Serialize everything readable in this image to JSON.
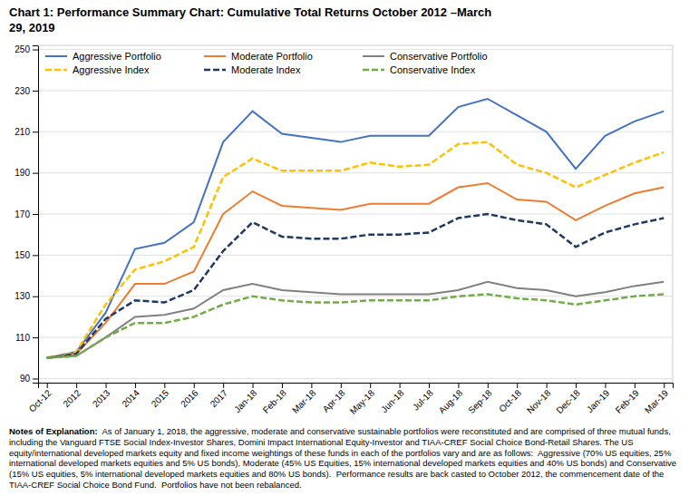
{
  "chart_data": {
    "type": "line",
    "title": "Chart 1:  Performance Summary Chart:  Cumulative Total Returns October 2012 –March",
    "subtitle": "29, 2019",
    "categories": [
      "Oct-12",
      "2012",
      "2013",
      "2014",
      "2015",
      "2016",
      "2017",
      "Jan-18",
      "Feb-18",
      "Mar-18",
      "Apr-18",
      "May-18",
      "Jun-18",
      "Jul-18",
      "Aug-18",
      "Sep-18",
      "Oct-18",
      "Nov-18",
      "Dec-18",
      "Jan-19",
      "Feb-19",
      "Mar-19"
    ],
    "series": [
      {
        "name": "Aggressive Portfolio",
        "color": "#4472C4",
        "line_style": "solid",
        "values": [
          100,
          103,
          122,
          153,
          156,
          166,
          205,
          220,
          209,
          207,
          205,
          208,
          208,
          208,
          222,
          226,
          218,
          210,
          192,
          208,
          215,
          220
        ]
      },
      {
        "name": "Moderate Portfolio",
        "color": "#ED7D31",
        "line_style": "solid",
        "values": [
          100,
          102,
          117,
          136,
          136,
          142,
          170,
          181,
          174,
          173,
          172,
          175,
          175,
          175,
          183,
          185,
          177,
          176,
          167,
          174,
          180,
          183
        ]
      },
      {
        "name": "Conservative Portfolio",
        "color": "#808080",
        "line_style": "solid",
        "values": [
          100,
          101,
          110,
          120,
          121,
          124,
          133,
          136,
          133,
          132,
          131,
          131,
          131,
          131,
          133,
          137,
          134,
          133,
          130,
          132,
          135,
          137
        ]
      },
      {
        "name": "Aggressive Index",
        "color": "#FFC000",
        "line_style": "dashed",
        "values": [
          100,
          103,
          126,
          143,
          147,
          154,
          188,
          197,
          191,
          191,
          191,
          195,
          193,
          194,
          204,
          205,
          194,
          190,
          183,
          189,
          195,
          200
        ]
      },
      {
        "name": "Moderate Index",
        "color": "#1F3864",
        "line_style": "dashed",
        "values": [
          100,
          102,
          119,
          128,
          127,
          133,
          152,
          166,
          159,
          158,
          158,
          160,
          160,
          161,
          168,
          170,
          167,
          165,
          154,
          161,
          165,
          168
        ]
      },
      {
        "name": "Conservative Index",
        "color": "#70AD47",
        "line_style": "dashed",
        "values": [
          100,
          101,
          110,
          117,
          117,
          120,
          126,
          130,
          128,
          127,
          127,
          128,
          128,
          128,
          130,
          131,
          129,
          128,
          126,
          128,
          130,
          131
        ]
      }
    ],
    "ylim": [
      88,
      252
    ],
    "yticks": [
      90,
      110,
      130,
      150,
      170,
      190,
      210,
      230,
      250
    ],
    "grid": true,
    "legend": "upper left",
    "annotations": [
      "Notes of Explanation:",
      "  As of January 1, 2018, the aggressive, moderate and conservative sustainable portfolios were reconstituted and are comprised of three mutual funds, including the Vanguard FTSE Social Index-Investor Shares, Domini Impact International Equity-Investor and TIAA-CREF Social Choice Bond-Retail Shares. The US equity/international developed markets equity and fixed income weightings of these funds in each of the portfolios vary and are as follows:  Aggressive (70% US equities, 25% international developed markets equities and 5% US bonds), Moderate (45% US Equities, 15% international developed markets equities and 40% US bonds) and Conservative (15% US equities, 5% international developed markets equities and 80% US bonds).  Performance results are back casted to October 2012, the commencement date of the TIAA-CREF Social Choice Bond Fund.  Portfolios have not been rebalanced."
    ]
  }
}
